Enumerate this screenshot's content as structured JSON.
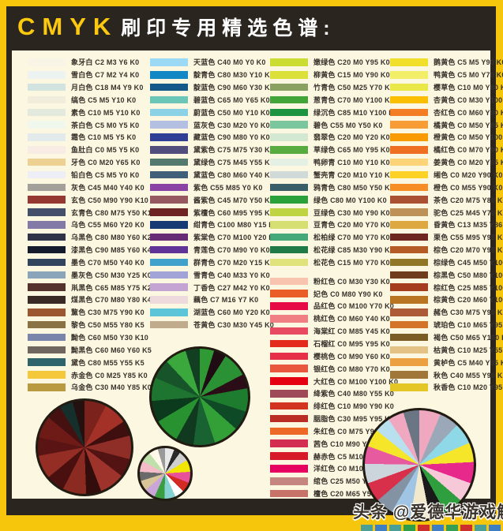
{
  "title": {
    "brand": "CMYK",
    "text": "刷印专用精选色谱:"
  },
  "watermark": {
    "text": "头条 @爱德华游戏解说",
    "squares": [
      "#4aa096",
      "#3e7fc4",
      "#4aa096",
      "#2f9e4a",
      "#cd2f2f",
      "#3e7fc4",
      "#35a053",
      "#cd2f2f",
      "#4aa096",
      "#3e7fc4"
    ]
  },
  "colors": {
    "frame_yellow": "#f5c60c",
    "frame_black": "#2b2520",
    "panel_cream": "#fbf7e0",
    "title_yellow": "#fdc90e"
  },
  "chart_data": {
    "type": "table",
    "title": "CMYK 刷印专用精选色谱:",
    "note": "entry = [name, C, M, Y, K, swatch-hex]",
    "columns": [
      {
        "entries": [
          [
            "象牙白",
            2,
            3,
            6,
            0,
            "#f8f4e6"
          ],
          [
            "雪白色",
            7,
            2,
            4,
            0,
            "#ecf3f1"
          ],
          [
            "月白色",
            18,
            4,
            9,
            0,
            "#d2e3e0"
          ],
          [
            "缟色",
            5,
            5,
            10,
            0,
            "#f0eddd"
          ],
          [
            "素色",
            10,
            5,
            10,
            0,
            "#e3e9dc"
          ],
          [
            "茶白色",
            5,
            0,
            5,
            0,
            "#f0f7ec"
          ],
          [
            "霜色",
            10,
            5,
            5,
            0,
            "#e3eaec"
          ],
          [
            "鱼肚白",
            0,
            5,
            5,
            0,
            "#f9ece5"
          ],
          [
            "牙色",
            0,
            20,
            65,
            0,
            "#ecd193"
          ],
          [
            "铅白色",
            5,
            5,
            0,
            0,
            "#eeeef6"
          ],
          [
            "灰色",
            45,
            40,
            40,
            0,
            "#a39f9b"
          ],
          [
            "玄色",
            50,
            90,
            90,
            10,
            "#953832"
          ],
          [
            "玄青色",
            80,
            75,
            50,
            10,
            "#44506b"
          ],
          [
            "乌色",
            55,
            60,
            20,
            0,
            "#837aa8"
          ],
          [
            "乌黑色",
            80,
            80,
            60,
            20,
            "#2f3449"
          ],
          [
            "漆黑色",
            90,
            85,
            60,
            45,
            "#141b2c"
          ],
          [
            "墨色",
            70,
            50,
            40,
            0,
            "#31455e"
          ],
          [
            "墨灰色",
            50,
            30,
            25,
            0,
            "#8aa4ba"
          ],
          [
            "鼡黑色",
            65,
            85,
            75,
            20,
            "#56322f"
          ],
          [
            "煤黑色",
            70,
            80,
            80,
            40,
            "#3a2a26"
          ],
          [
            "黧色",
            30,
            75,
            90,
            0,
            "#9c5630"
          ],
          [
            "黎色",
            50,
            55,
            80,
            5,
            "#8b7244"
          ],
          [
            "黝色",
            60,
            50,
            30,
            10,
            "#7a85ab"
          ],
          [
            "黝黑色",
            60,
            60,
            60,
            5,
            "#6f6660"
          ],
          [
            "黛色",
            80,
            55,
            55,
            5,
            "#2f646c"
          ],
          [
            "赤金色",
            0,
            25,
            85,
            0,
            "#f5c73a"
          ],
          [
            "乌金色",
            30,
            40,
            85,
            0,
            "#b99a40"
          ]
        ]
      },
      {
        "entries": [
          [
            "天蓝色",
            40,
            0,
            0,
            0,
            "#9cd9f4"
          ],
          [
            "靛青色",
            80,
            30,
            10,
            0,
            "#1488c4"
          ],
          [
            "靛蓝色",
            90,
            60,
            30,
            0,
            "#14598a"
          ],
          [
            "碧蓝色",
            65,
            0,
            65,
            0,
            "#6cc6b8"
          ],
          [
            "蔚蓝色",
            50,
            0,
            10,
            0,
            "#8bd2e6"
          ],
          [
            "蓝灰色",
            30,
            20,
            0,
            0,
            "#b4c0e2"
          ],
          [
            "藏蓝色",
            90,
            80,
            0,
            0,
            "#2f3f96"
          ],
          [
            "黛紫色",
            75,
            75,
            30,
            0,
            "#514d7c"
          ],
          [
            "黛绿色",
            75,
            45,
            55,
            0,
            "#547a70"
          ],
          [
            "黛蓝色",
            80,
            60,
            40,
            0,
            "#40607a"
          ],
          [
            "紫色",
            55,
            85,
            0,
            0,
            "#8a42a4"
          ],
          [
            "酱紫色",
            45,
            70,
            50,
            0,
            "#96595f"
          ],
          [
            "紫檀色",
            60,
            95,
            95,
            20,
            "#6e2423"
          ],
          [
            "绀青色",
            100,
            80,
            15,
            0,
            "#163a74"
          ],
          [
            "紫棠色",
            70,
            100,
            20,
            0,
            "#672a74"
          ],
          [
            "青莲色",
            70,
            90,
            0,
            0,
            "#5f3398"
          ],
          [
            "群青色",
            70,
            20,
            15,
            0,
            "#40a2cc"
          ],
          [
            "雪青色",
            40,
            33,
            0,
            0,
            "#a2a4d8"
          ],
          [
            "丁香色",
            27,
            42,
            0,
            0,
            "#c3a4d2"
          ],
          [
            "藕色",
            7,
            16,
            7,
            0,
            "#eedadd"
          ],
          [
            "湖蓝色",
            60,
            0,
            20,
            0,
            "#5cc6d8"
          ],
          [
            "苍黄色",
            30,
            30,
            45,
            0,
            "#c0ab8c"
          ]
        ]
      },
      {
        "entries": [
          [
            "嫩绿色",
            20,
            0,
            95,
            0,
            "#cbdc33"
          ],
          [
            "柳黄色",
            15,
            0,
            90,
            0,
            "#dce13a"
          ],
          [
            "竹青色",
            50,
            25,
            70,
            0,
            "#8ba162"
          ],
          [
            "葱青色",
            70,
            0,
            100,
            0,
            "#43a43a"
          ],
          [
            "绿沉色",
            85,
            10,
            100,
            0,
            "#1d9440"
          ],
          [
            "碧色",
            55,
            0,
            50,
            0,
            "#7cc69e"
          ],
          [
            "翡翠色",
            20,
            0,
            20,
            0,
            "#d3e8d0"
          ],
          [
            "草绿色",
            65,
            0,
            95,
            0,
            "#58ab3f"
          ],
          [
            "鸭卵青",
            10,
            0,
            10,
            0,
            "#e4f0e3"
          ],
          [
            "蟹壳青",
            20,
            10,
            10,
            0,
            "#d0dad9"
          ],
          [
            "鸦青色",
            80,
            50,
            50,
            10,
            "#3a5f68"
          ],
          [
            "绿色",
            80,
            0,
            100,
            0,
            "#2aa13b"
          ],
          [
            "豆绿色",
            30,
            0,
            90,
            0,
            "#bed442"
          ],
          [
            "豆青色",
            20,
            0,
            70,
            0,
            "#d6e072"
          ],
          [
            "松柏绿",
            70,
            0,
            70,
            0,
            "#45a878"
          ],
          [
            "松花绿",
            85,
            30,
            90,
            0,
            "#1f7a48"
          ],
          [
            "松花色",
            15,
            0,
            70,
            0,
            "#e0e37c"
          ],
          [
            "粉红色",
            0,
            30,
            30,
            0,
            "#f8c3af",
            "gap"
          ],
          [
            "妃色",
            0,
            80,
            90,
            0,
            "#ea5c28"
          ],
          [
            "品红色",
            0,
            100,
            70,
            0,
            "#e60b44"
          ],
          [
            "桃红色",
            0,
            60,
            40,
            0,
            "#ef7f82"
          ],
          [
            "海棠红",
            0,
            85,
            45,
            0,
            "#e84a62"
          ],
          [
            "石榴红",
            0,
            95,
            95,
            0,
            "#e32a1c"
          ],
          [
            "樱桃色",
            0,
            90,
            60,
            0,
            "#e53048"
          ],
          [
            "银红色",
            0,
            80,
            70,
            0,
            "#e9573f"
          ],
          [
            "大红色",
            0,
            100,
            100,
            0,
            "#e50012"
          ],
          [
            "绛紫色",
            40,
            80,
            55,
            0,
            "#9e4a58"
          ],
          [
            "绯红色",
            10,
            90,
            90,
            0,
            "#d23420"
          ],
          [
            "胭脂色",
            30,
            95,
            95,
            0,
            "#b92d24"
          ],
          [
            "朱红色",
            0,
            75,
            90,
            0,
            "#ec6926"
          ],
          [
            "茜色",
            10,
            90,
            60,
            0,
            "#d42d52"
          ],
          [
            "赫赤色",
            5,
            100,
            90,
            0,
            "#d61a28"
          ],
          [
            "洋红色",
            0,
            100,
            50,
            0,
            "#e6005f"
          ],
          [
            "绾色",
            25,
            50,
            50,
            0,
            "#c4867e"
          ],
          [
            "檀色",
            20,
            65,
            55,
            0,
            "#c7736a"
          ]
        ]
      },
      {
        "entries": [
          [
            "鹅黄色",
            5,
            5,
            90,
            0,
            "#f2df2c"
          ],
          [
            "鸭黄色",
            5,
            0,
            70,
            0,
            "#f3ee68"
          ],
          [
            "樱草色",
            10,
            0,
            80,
            0,
            "#e9e848"
          ],
          [
            "杏黄色",
            0,
            30,
            100,
            0,
            "#fbbf00"
          ],
          [
            "杏红色",
            0,
            60,
            90,
            0,
            "#f37e26"
          ],
          [
            "橘黄色",
            0,
            50,
            85,
            0,
            "#f89c35"
          ],
          [
            "橙黄色",
            0,
            50,
            100,
            0,
            "#f89a00"
          ],
          [
            "橘红色",
            0,
            70,
            90,
            0,
            "#ee6f21"
          ],
          [
            "姜黄色",
            0,
            20,
            65,
            0,
            "#fdd377"
          ],
          [
            "缃色",
            0,
            20,
            90,
            0,
            "#fdd226"
          ],
          [
            "橙色",
            0,
            55,
            90,
            0,
            "#f68d25"
          ],
          [
            "茶色",
            20,
            75,
            80,
            0,
            "#aa5033"
          ],
          [
            "驼色",
            25,
            45,
            70,
            0,
            "#bd9158"
          ],
          [
            "昏黄色",
            13,
            35,
            86,
            0,
            "#dda83f"
          ],
          [
            "栗色",
            55,
            95,
            95,
            10,
            "#6e2620"
          ],
          [
            "棕色",
            20,
            70,
            95,
            0,
            "#b55b25"
          ],
          [
            "棕绿色",
            45,
            50,
            100,
            0,
            "#907626"
          ],
          [
            "棕黑色",
            50,
            80,
            100,
            5,
            "#703c1e"
          ],
          [
            "棕红色",
            25,
            85,
            100,
            0,
            "#a63c1f"
          ],
          [
            "棕黄色",
            20,
            60,
            100,
            0,
            "#ba7522"
          ],
          [
            "赭色",
            30,
            75,
            90,
            0,
            "#ad5a38"
          ],
          [
            "琥珀色",
            10,
            65,
            95,
            0,
            "#d4732a"
          ],
          [
            "褐色",
            50,
            65,
            100,
            10,
            "#7a5c24"
          ],
          [
            "枯黄色",
            10,
            25,
            55,
            0,
            "#e4c286"
          ],
          [
            "黄栌色",
            5,
            40,
            85,
            0,
            "#eda042"
          ],
          [
            "秋色",
            40,
            55,
            90,
            0,
            "#a07738"
          ],
          [
            "秋香色",
            10,
            20,
            95,
            0,
            "#e4c627"
          ]
        ]
      }
    ],
    "pies": [
      {
        "name": "red-color-wheel",
        "type": "pie",
        "wedges": [
          [
            "#7c221c",
            26
          ],
          [
            "#a33127",
            28
          ],
          [
            "#3f0e0e",
            18
          ],
          [
            "#8e2e26",
            28
          ],
          [
            "#541313",
            22
          ],
          [
            "#9e332b",
            30
          ],
          [
            "#330c0c",
            18
          ],
          [
            "#8a2a20",
            28
          ],
          [
            "#4a1010",
            22
          ],
          [
            "#942d24",
            28
          ],
          [
            "#5a1414",
            22
          ],
          [
            "#6e1a17",
            26
          ],
          [
            "#451010",
            18
          ],
          [
            "#15302c",
            16
          ],
          [
            "#24110f",
            14
          ]
        ]
      },
      {
        "name": "green-color-wheel",
        "type": "pie",
        "wedges": [
          [
            "#2f9a33",
            16
          ],
          [
            "#200d14",
            14
          ],
          [
            "#2a9134",
            28
          ],
          [
            "#2a0d16",
            16
          ],
          [
            "#1e7c2e",
            26
          ],
          [
            "#0f4a26",
            22
          ],
          [
            "#32a036",
            28
          ],
          [
            "#196231",
            24
          ],
          [
            "#11391f",
            20
          ],
          [
            "#27922f",
            28
          ],
          [
            "#0c3a1d",
            24
          ],
          [
            "#1d7530",
            26
          ],
          [
            "#17542a",
            22
          ],
          [
            "#3aa83c",
            24
          ],
          [
            "#123f22",
            16
          ]
        ]
      },
      {
        "name": "small-color-wheel",
        "type": "pie",
        "wedges": [
          [
            "#e8e8e8",
            20
          ],
          [
            "#2a2a2a",
            14
          ],
          [
            "#cfcfcf",
            22
          ],
          [
            "#f2e600",
            26
          ],
          [
            "#e8509a",
            24
          ],
          [
            "#d42a24",
            22
          ],
          [
            "#ffffff",
            20
          ],
          [
            "#86d2d2",
            24
          ],
          [
            "#3a9e40",
            22
          ],
          [
            "#caa6d8",
            24
          ],
          [
            "#d8c698",
            22
          ],
          [
            "#6a6a6a",
            20
          ],
          [
            "#f4bcc8",
            24
          ],
          [
            "#bfe0aa",
            22
          ],
          [
            "#fdf8e8",
            20
          ],
          [
            "#9a9a9a",
            16
          ]
        ]
      },
      {
        "name": "multicolor-wheel",
        "type": "pie",
        "wedges": [
          [
            "#f0a8c0",
            24
          ],
          [
            "#9aa8b8",
            22
          ],
          [
            "#8ed8e8",
            24
          ],
          [
            "#f5e62a",
            22
          ],
          [
            "#e8298c",
            24
          ],
          [
            "#f6c8d8",
            22
          ],
          [
            "#2f9e3f",
            22
          ],
          [
            "#1a1a1a",
            18
          ],
          [
            "#f2e8cc",
            22
          ],
          [
            "#a0c4e4",
            22
          ],
          [
            "#8493a4",
            20
          ],
          [
            "#d8304a",
            22
          ],
          [
            "#cdd5dc",
            22
          ],
          [
            "#e85aa0",
            20
          ],
          [
            "#f5e62a",
            20
          ],
          [
            "#b8e0ee",
            18
          ],
          [
            "#f0a8c0",
            18
          ],
          [
            "#6a7684",
            18
          ]
        ]
      }
    ]
  }
}
